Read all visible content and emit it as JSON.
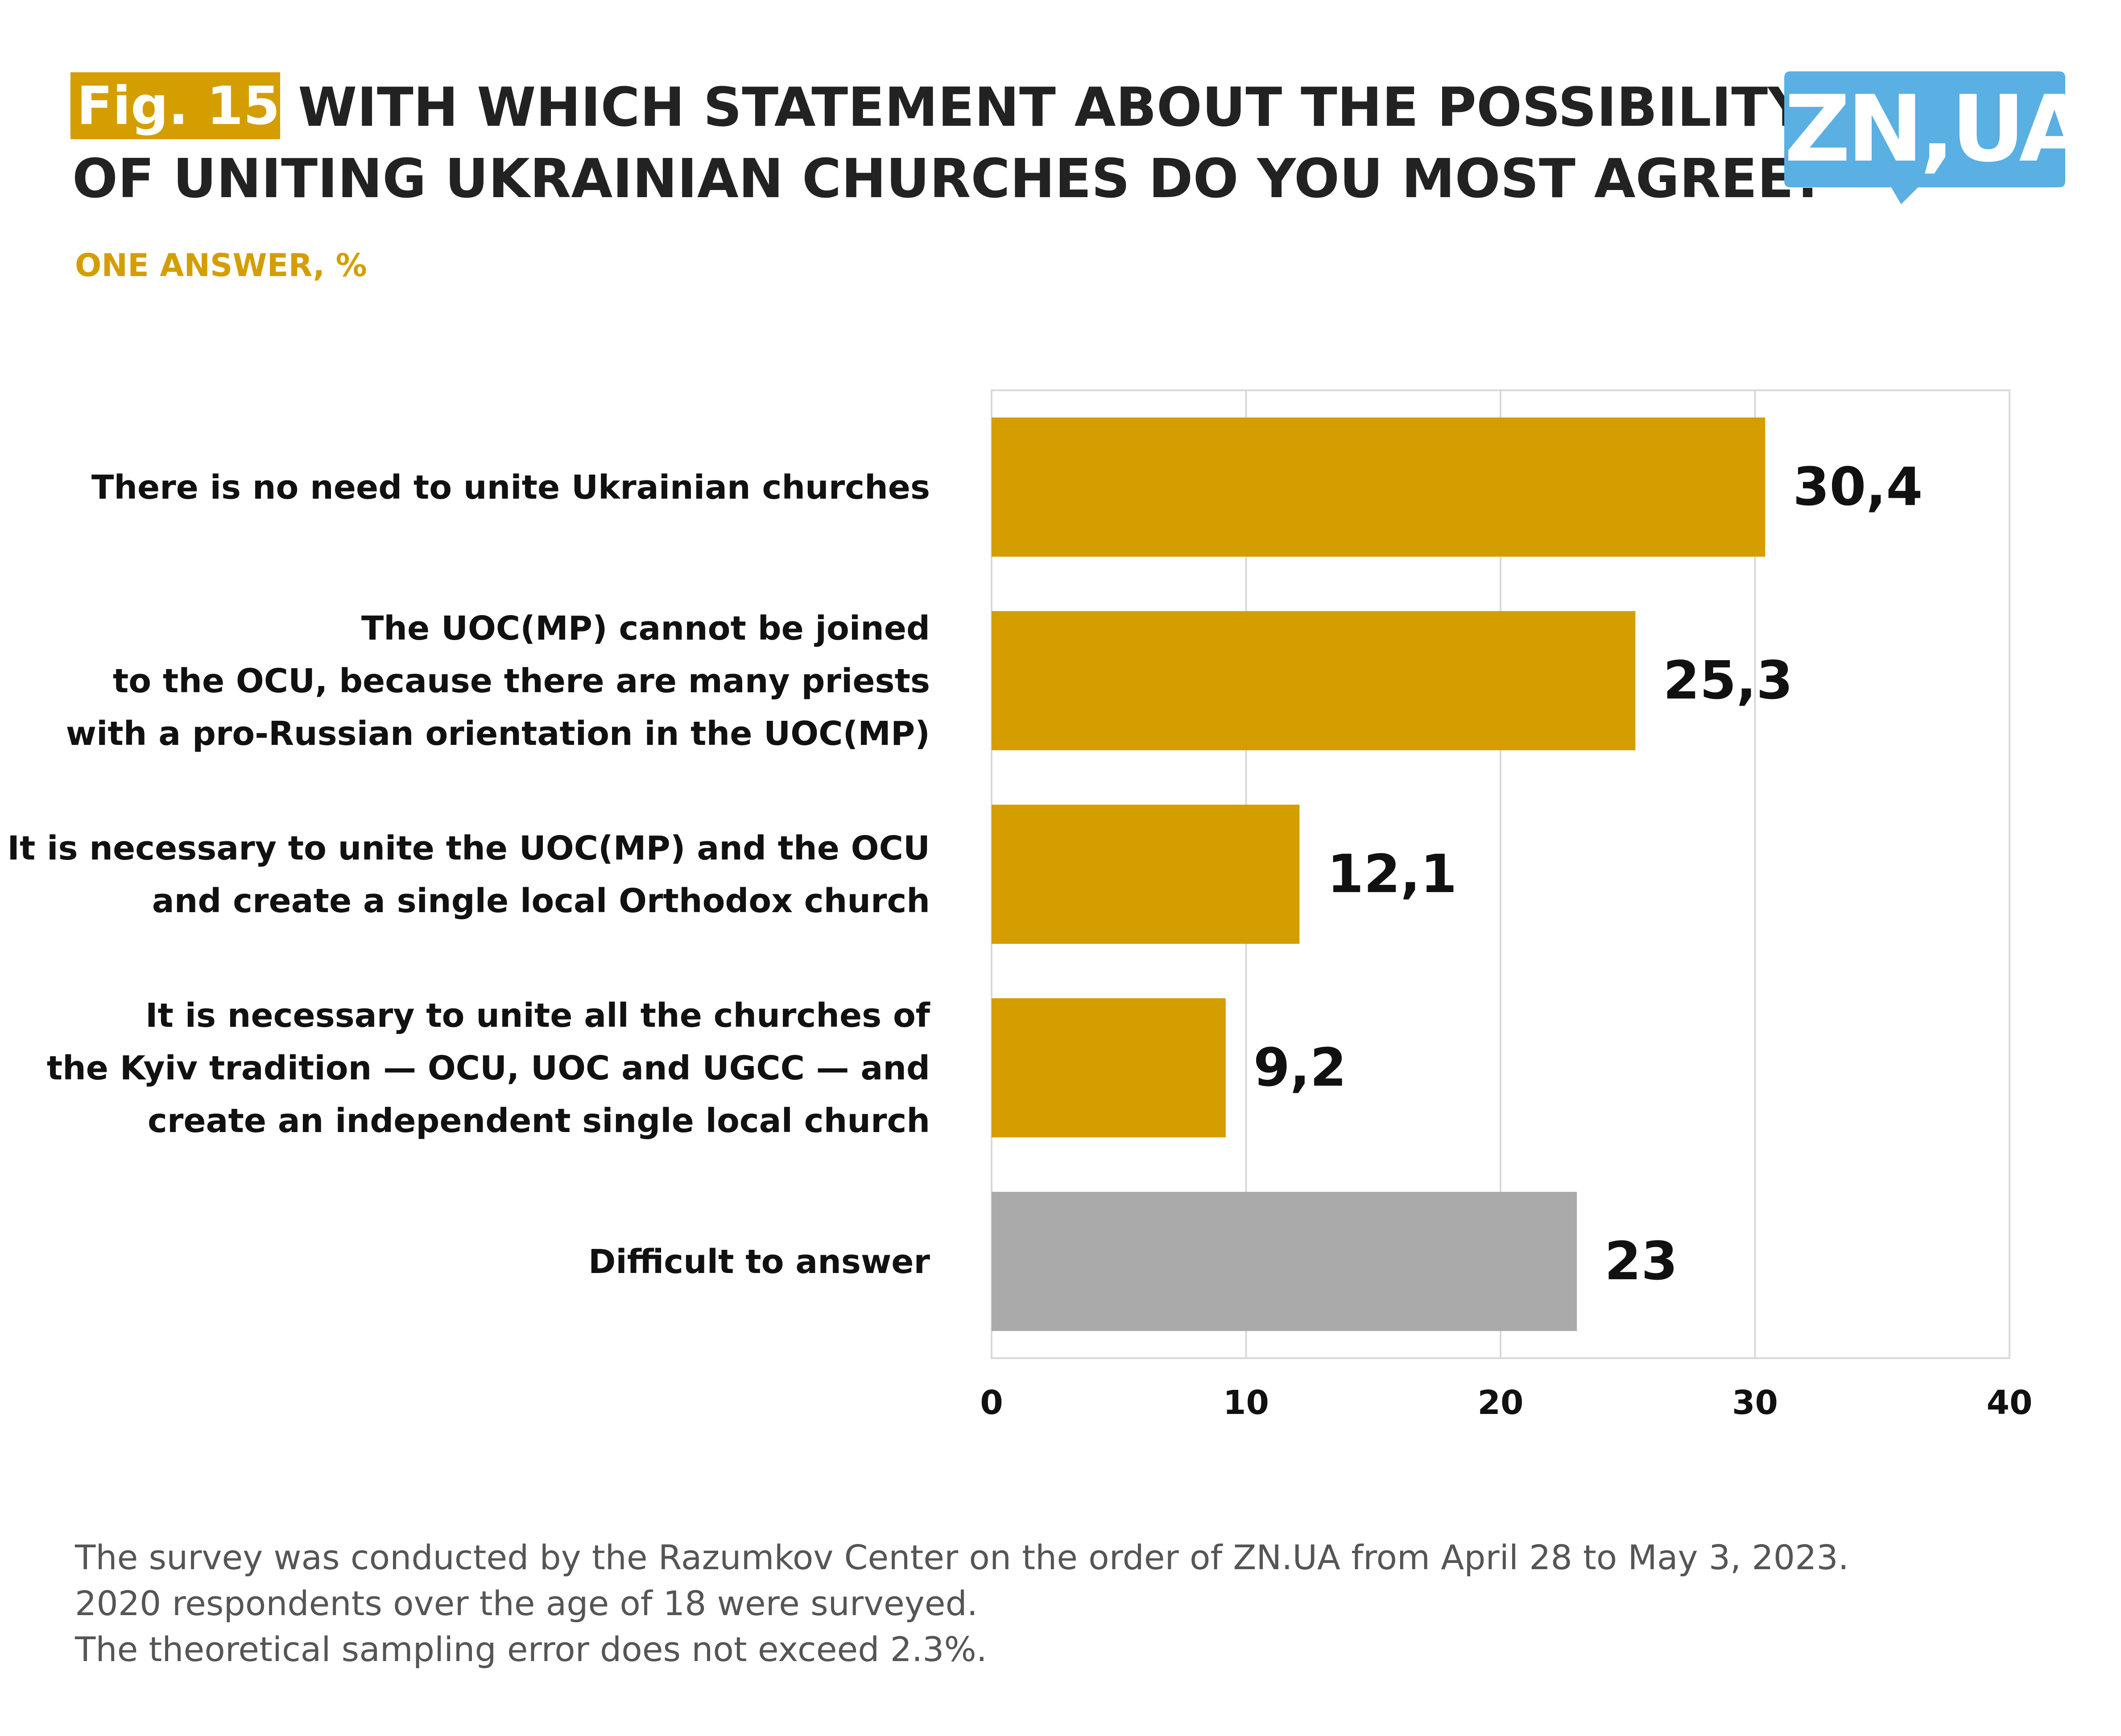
{
  "header": {
    "fig_label": "Fig. 15.",
    "title_line1": "WITH WHICH STATEMENT ABOUT THE POSSIBILITY",
    "title_line2": "OF UNITING UKRAINIAN CHURCHES DO YOU MOST AGREE?",
    "subtitle": "ONE ANSWER, %"
  },
  "logo": {
    "text": "ZN,UA",
    "color": "#5aafe3"
  },
  "colors": {
    "accent": "#d49e00",
    "bar_primary": "#d49e00",
    "bar_neutral": "#aaaaaa",
    "grid": "#d9d9d9"
  },
  "chart_data": {
    "type": "bar",
    "orientation": "horizontal",
    "categories": [
      [
        "There is no need to unite Ukrainian churches"
      ],
      [
        "The UOC(MP) cannot be joined",
        "to the OCU, because there are many priests",
        "with a pro-Russian orientation in the UOC(MP)"
      ],
      [
        "It is necessary to unite the UOC(MP) and the OCU",
        "and create a single local Orthodox church"
      ],
      [
        "It is necessary to unite all the churches of",
        "the Kyiv tradition — OCU, UOC and UGCC — and",
        "create an independent single local church"
      ],
      [
        "Difficult to answer"
      ]
    ],
    "values": [
      30.4,
      25.3,
      12.1,
      9.2,
      23
    ],
    "value_labels": [
      "30,4",
      "25,3",
      "12,1",
      "9,2",
      "23"
    ],
    "bar_colors": [
      "#d49e00",
      "#d49e00",
      "#d49e00",
      "#d49e00",
      "#aaaaaa"
    ],
    "xlim": [
      0,
      40
    ],
    "xticks": [
      0,
      10,
      20,
      30,
      40
    ],
    "xtick_labels": [
      "0",
      "10",
      "20",
      "30",
      "40"
    ],
    "grid": true
  },
  "footnote": [
    "The survey was conducted by the Razumkov Center on the order of ZN.UA from April 28 to May 3, 2023.",
    "2020 respondents over the age of 18 were surveyed.",
    "The theoretical sampling error does not exceed 2.3%."
  ]
}
